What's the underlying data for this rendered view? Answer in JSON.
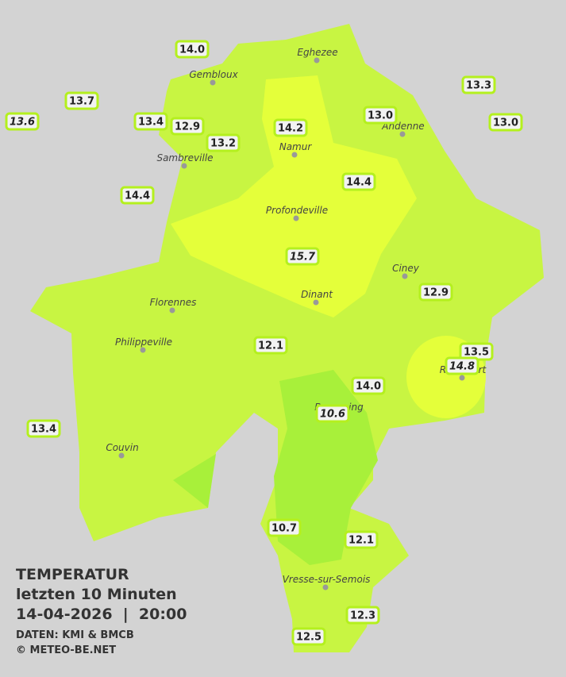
{
  "legend": {
    "title": "TEMPERATUR",
    "subtitle": "letzten 10 Minuten",
    "datetime": "14-04-2026  |  20:00",
    "source": "DATEN: KMI & BMCB",
    "copyright": "© METEO-BE.NET"
  },
  "towns": [
    "Eghezee",
    "Gembloux",
    "Andenne",
    "Namur",
    "Sambreville",
    "Profondeville",
    "Ciney",
    "Florennes",
    "Dinant",
    "Philippeville",
    "Rochefort",
    "Beauraing",
    "Couvin",
    "Vresse-sur-Semois"
  ],
  "stations": [
    {
      "label": "14.0"
    },
    {
      "label": "13.7"
    },
    {
      "label": "13.6",
      "italic": true
    },
    {
      "label": "13.4"
    },
    {
      "label": "12.9"
    },
    {
      "label": "13.2"
    },
    {
      "label": "14.2"
    },
    {
      "label": "13.0"
    },
    {
      "label": "13.3"
    },
    {
      "label": "13.0"
    },
    {
      "label": "14.4"
    },
    {
      "label": "14.4"
    },
    {
      "label": "15.7",
      "italic": true
    },
    {
      "label": "12.9"
    },
    {
      "label": "12.1"
    },
    {
      "label": "13.5"
    },
    {
      "label": "14.8",
      "italic": true
    },
    {
      "label": "14.0"
    },
    {
      "label": "10.6",
      "italic": true
    },
    {
      "label": "13.4"
    },
    {
      "label": "10.7"
    },
    {
      "label": "12.1"
    },
    {
      "label": "12.3"
    },
    {
      "label": "12.5"
    }
  ]
}
